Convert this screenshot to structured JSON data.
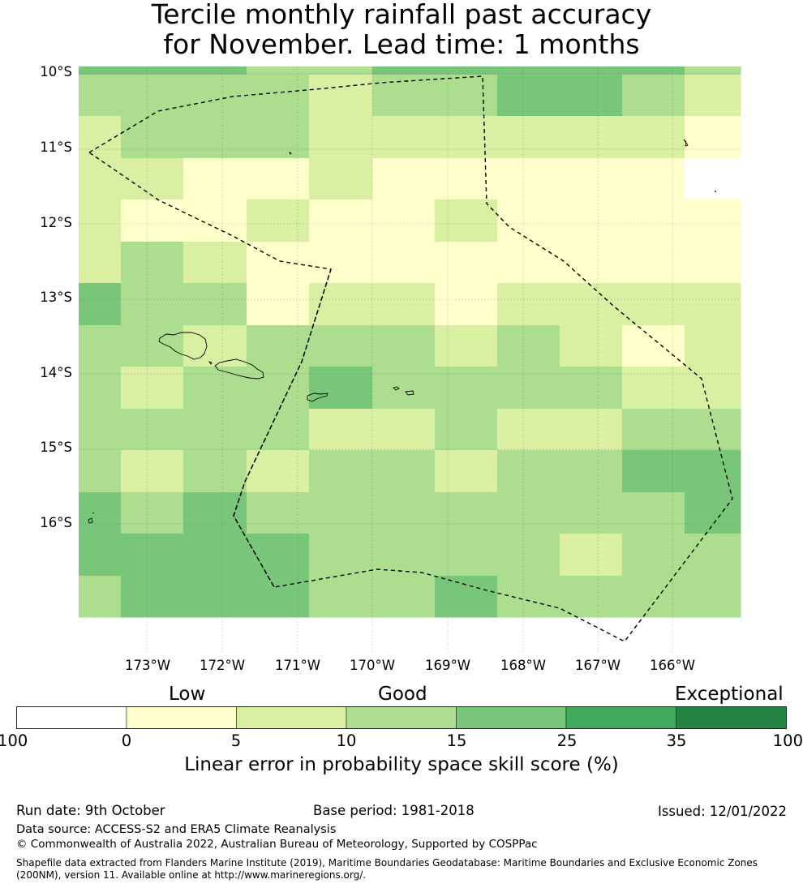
{
  "title": {
    "line1": "Tercile monthly rainfall past accuracy",
    "line2": "for November. Lead time: 1 months"
  },
  "map": {
    "lat_labels": [
      "10°S",
      "11°S",
      "12°S",
      "13°S",
      "14°S",
      "15°S",
      "16°S"
    ],
    "lon_labels": [
      "173°W",
      "172°W",
      "171°W",
      "170°W",
      "169°W",
      "168°W",
      "167°W",
      "166°W"
    ],
    "skill_grid": [
      [
        3,
        3,
        3,
        2,
        2,
        3,
        3,
        3,
        3,
        3,
        2
      ],
      [
        2,
        2,
        2,
        2,
        1,
        2,
        2,
        3,
        3,
        2,
        1
      ],
      [
        1,
        2,
        2,
        2,
        1,
        1,
        1,
        1,
        1,
        1,
        0
      ],
      [
        1,
        1,
        0,
        0,
        1,
        0,
        0,
        0,
        0,
        0,
        -1
      ],
      [
        1,
        0,
        0,
        1,
        0,
        0,
        1,
        0,
        0,
        0,
        0
      ],
      [
        1,
        2,
        1,
        0,
        0,
        0,
        0,
        0,
        0,
        0,
        0
      ],
      [
        3,
        2,
        2,
        0,
        1,
        1,
        0,
        1,
        1,
        1,
        1
      ],
      [
        2,
        2,
        1,
        2,
        2,
        2,
        1,
        2,
        1,
        0,
        1
      ],
      [
        2,
        1,
        2,
        2,
        3,
        2,
        2,
        2,
        2,
        1,
        1
      ],
      [
        2,
        2,
        2,
        2,
        1,
        1,
        2,
        1,
        1,
        2,
        2
      ],
      [
        2,
        1,
        2,
        1,
        2,
        2,
        1,
        2,
        2,
        3,
        3
      ],
      [
        3,
        2,
        3,
        2,
        2,
        2,
        2,
        2,
        2,
        2,
        3
      ],
      [
        3,
        3,
        3,
        3,
        2,
        2,
        2,
        2,
        1,
        2,
        2
      ],
      [
        2,
        3,
        3,
        3,
        2,
        2,
        3,
        2,
        2,
        2,
        2
      ]
    ],
    "boundary_style": "dashed"
  },
  "colorbar": {
    "categories": [
      "Low",
      "Good",
      "Exceptional"
    ],
    "ticks": [
      "-100",
      "0",
      "5",
      "10",
      "15",
      "25",
      "35",
      "100"
    ],
    "colors": [
      "#ffffff",
      "#ffffcc",
      "#d9f0a3",
      "#addd8e",
      "#78c679",
      "#41ab5d",
      "#238443"
    ],
    "title": "Linear error in probability space skill score (%)"
  },
  "footer": {
    "run_date": "Run date: 9th October",
    "base_period": "Base period: 1981-2018",
    "issued": "Issued: 12/01/2022",
    "data_source": "Data source: ACCESS-S2 and ERA5 Climate Reanalysis",
    "copyright": "© Commonwealth of Australia 2022, Australian Bureau of Meteorology, Supported by COSPPac",
    "shapefile_line1": "Shapefile data extracted from Flanders Marine Institute (2019), Maritime Boundaries Geodatabase: Maritime Boundaries and Exclusive Economic Zones",
    "shapefile_line2": "(200NM), version 11. Available online at http://www.marineregions.org/."
  }
}
